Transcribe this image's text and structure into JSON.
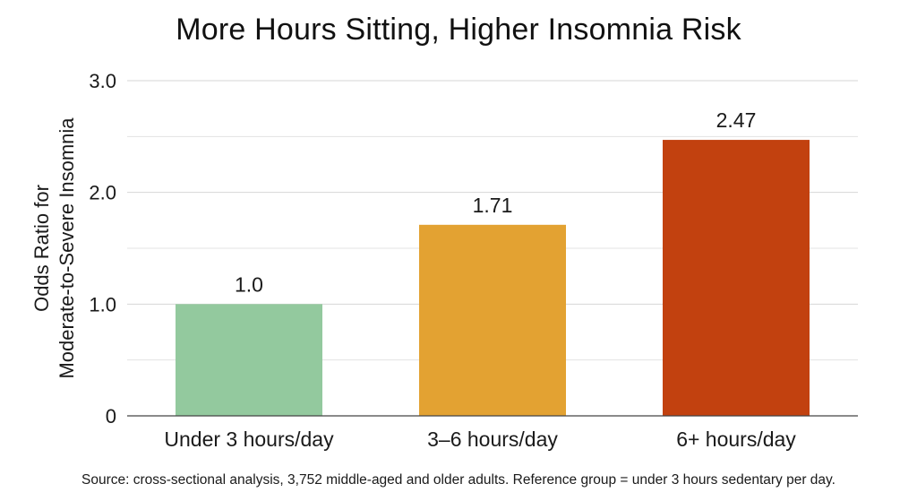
{
  "chart_data": {
    "type": "bar",
    "title": "More Hours Sitting, Higher Insomnia Risk",
    "ylabel_lines": [
      "Odds Ratio for",
      "Moderate-to-Severe Insomnia"
    ],
    "xlabel": "",
    "categories": [
      "Under 3 hours/day",
      "3–6 hours/day",
      "6+ hours/day"
    ],
    "values": [
      1.0,
      1.71,
      2.47
    ],
    "value_labels": [
      "1.0",
      "1.71",
      "2.47"
    ],
    "bar_colors": [
      "#93c99e",
      "#e3a232",
      "#c2410f"
    ],
    "ylim": [
      0,
      3.0
    ],
    "y_ticks": [
      0,
      1.0,
      2.0,
      3.0
    ],
    "y_tick_labels": [
      "0",
      "1.0",
      "2.0",
      "3.0"
    ],
    "minor_grid": [
      0.5,
      1.5,
      2.5
    ],
    "grid": true,
    "legend": "none"
  },
  "footer": {
    "source": "Source: cross-sectional analysis, 3,752 middle-aged and older adults. Reference group = under 3 hours sedentary per day."
  }
}
